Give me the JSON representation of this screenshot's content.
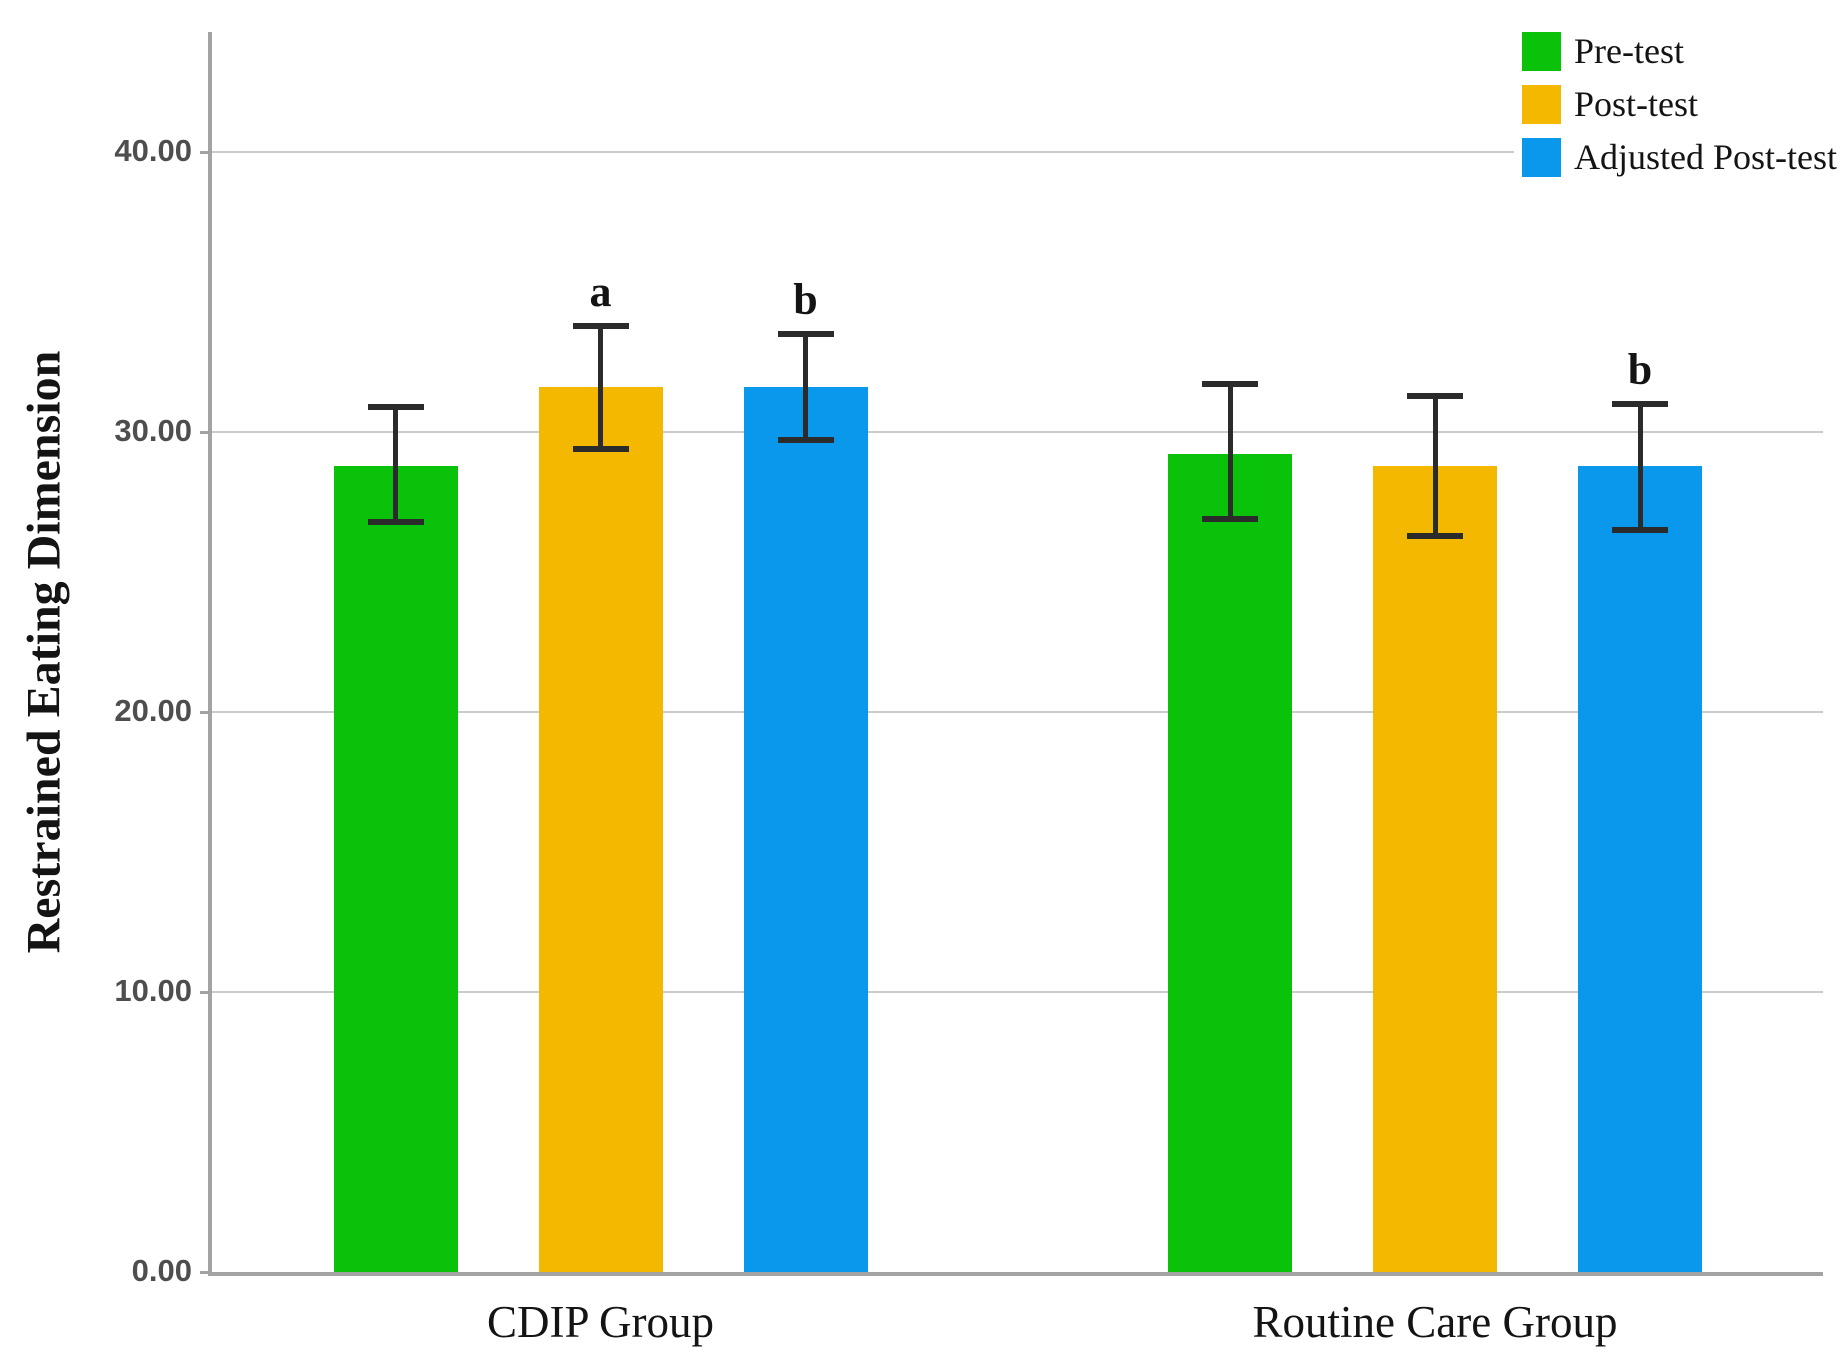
{
  "chart_data": {
    "type": "bar",
    "title": "",
    "xlabel": "",
    "ylabel": "Restrained Eating Dimension",
    "categories": [
      "CDIP Group",
      "Routine Care Group"
    ],
    "series": [
      {
        "name": "Pre-test",
        "color": "#0ac20a",
        "values": [
          28.8,
          29.2
        ],
        "error_low": [
          26.8,
          26.9
        ],
        "error_high": [
          30.9,
          31.7
        ],
        "annotations": [
          "",
          ""
        ]
      },
      {
        "name": "Post-test",
        "color": "#f5b800",
        "values": [
          31.6,
          28.8
        ],
        "error_low": [
          29.4,
          26.3
        ],
        "error_high": [
          33.8,
          31.3
        ],
        "annotations": [
          "a",
          ""
        ]
      },
      {
        "name": "Adjusted Post-test",
        "color": "#0998ec",
        "values": [
          31.6,
          28.8
        ],
        "error_low": [
          29.7,
          26.5
        ],
        "error_high": [
          33.5,
          31.0
        ],
        "annotations": [
          "b",
          "b"
        ]
      }
    ],
    "ylim": [
      0,
      44.3
    ],
    "yticks": [
      0,
      10,
      20,
      30,
      40
    ],
    "ytick_labels": [
      "0.00",
      "10.00",
      "20.00",
      "30.00",
      "40.00"
    ],
    "grid": "horizontal",
    "legend_position": "top-right",
    "error_bars": true
  },
  "style": {
    "axis_color": "#a3a3a3",
    "gridline_color": "#cbcbcb",
    "tick_label_color": "#4e4e50",
    "text_color": "#141414",
    "error_bar_color": "#2b2b2b",
    "background": "#ffffff"
  }
}
